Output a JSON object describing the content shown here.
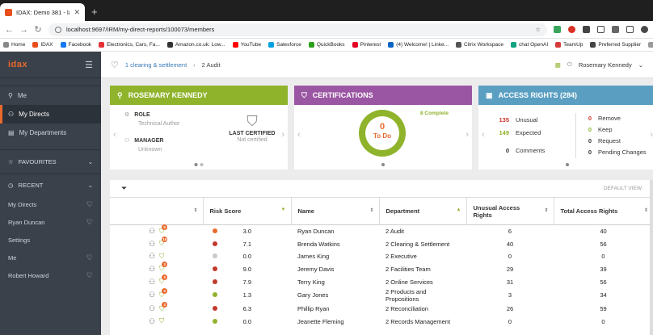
{
  "browser": {
    "tab_title": "IDAX: Demo 381 - laptop",
    "url": "localhost:9697/IRM/my-direct-reports/100073/members",
    "bookmarks": [
      {
        "label": "Home",
        "color": "#888"
      },
      {
        "label": "IDAX",
        "color": "#e94e1b"
      },
      {
        "label": "Facebook",
        "color": "#1877f2"
      },
      {
        "label": "Electronics, Cars, Fa...",
        "color": "#e53238"
      },
      {
        "label": "Amazon.co.uk: Low...",
        "color": "#333"
      },
      {
        "label": "YouTube",
        "color": "#ff0000"
      },
      {
        "label": "Salesforce",
        "color": "#00a1e0"
      },
      {
        "label": "QuickBooks",
        "color": "#2ca01c"
      },
      {
        "label": "Pinterest",
        "color": "#e60023"
      },
      {
        "label": "(4) Welcome! | Linke...",
        "color": "#0a66c2"
      },
      {
        "label": "Citrix Workspace",
        "color": "#555"
      },
      {
        "label": "chat OpenAI",
        "color": "#10a37f"
      },
      {
        "label": "TeamUp",
        "color": "#d63b3b"
      },
      {
        "label": "Preferred Supplier",
        "color": "#444"
      },
      {
        "label": "All Bookma",
        "color": "#999"
      }
    ]
  },
  "app": {
    "logo": "idax",
    "sidebar": {
      "items": [
        {
          "label": "Me"
        },
        {
          "label": "My Directs"
        },
        {
          "label": "My Departments"
        }
      ],
      "favourites": "FAVOURITES",
      "recent": "RECENT",
      "recent_items": [
        {
          "label": "My Directs"
        },
        {
          "label": "Ryan Duncan"
        },
        {
          "label": "Settings"
        },
        {
          "label": "Me"
        },
        {
          "label": "Robert Howard"
        }
      ]
    },
    "breadcrumb": {
      "link": "1 clearing & settlement",
      "current": "2 Audit"
    },
    "user": "Rosemary Kennedy",
    "profile_card": {
      "title": "ROSEMARY KENNEDY",
      "role_label": "ROLE",
      "role_value": "Technical Author",
      "manager_label": "MANAGER",
      "manager_value": "Unknown",
      "certified_label": "LAST CERTIFIED",
      "certified_value": "Not certified"
    },
    "cert_card": {
      "title": "CERTIFICATIONS",
      "complete": "8 Complete",
      "todo_count": "0",
      "todo_label": "To Do"
    },
    "access_card": {
      "title": "ACCESS RIGHTS (284)",
      "unusual_n": "135",
      "unusual": "Unusual",
      "expected_n": "149",
      "expected": "Expected",
      "comments_n": "0",
      "comments": "Comments",
      "remove_n": "0",
      "remove": "Remove",
      "keep_n": "0",
      "keep": "Keep",
      "request_n": "0",
      "request": "Request",
      "pending_n": "0",
      "pending": "Pending Changes"
    },
    "table": {
      "default_view": "DEFAULT VIEW",
      "headers": {
        "risk": "Risk Score",
        "name": "Name",
        "dept": "Department",
        "unusual": "Unusual Access Rights",
        "total": "Total Access Rights"
      },
      "rows": [
        {
          "badge": "5",
          "risk_color": "#e9692c",
          "score": "3.0",
          "name": "Ryan Duncan",
          "dept": "2 Audit",
          "unusual": "6",
          "total": "40"
        },
        {
          "badge": "15",
          "risk_color": "#c0392b",
          "score": "7.1",
          "name": "Brenda Watkins",
          "dept": "2 Clearing & Settlement",
          "unusual": "40",
          "total": "56"
        },
        {
          "badge": "",
          "risk_color": "#c8c8c8",
          "score": "0.0",
          "name": "James King",
          "dept": "2 Executive",
          "unusual": "0",
          "total": "0"
        },
        {
          "badge": "3",
          "risk_color": "#c0392b",
          "score": "9.0",
          "name": "Jeremy Davis",
          "dept": "2 Facilities Team",
          "unusual": "29",
          "total": "39"
        },
        {
          "badge": "3",
          "risk_color": "#c0392b",
          "score": "7.9",
          "name": "Terry King",
          "dept": "2 Online Services",
          "unusual": "31",
          "total": "56"
        },
        {
          "badge": "3",
          "risk_color": "#8fb32b",
          "score": "1.3",
          "name": "Gary Jones",
          "dept": "2 Products and Propositions",
          "unusual": "3",
          "total": "34"
        },
        {
          "badge": "3",
          "risk_color": "#c0392b",
          "score": "6.3",
          "name": "Phillip Ryan",
          "dept": "2 Reconciliation",
          "unusual": "26",
          "total": "59"
        },
        {
          "badge": "",
          "risk_color": "#8fb32b",
          "score": "0.0",
          "name": "Jeanette Fleming",
          "dept": "2 Records Management",
          "unusual": "0",
          "total": "0"
        }
      ]
    }
  }
}
